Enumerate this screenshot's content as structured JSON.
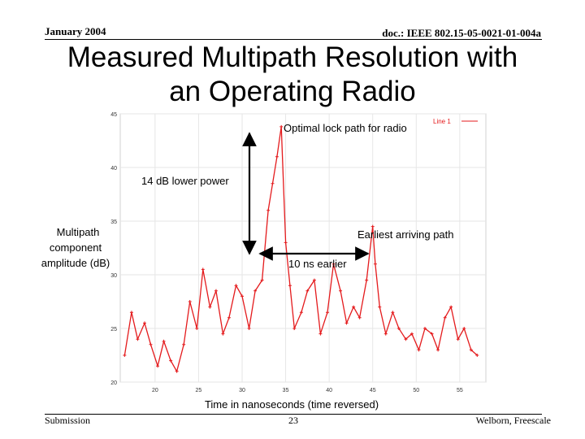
{
  "header": {
    "date": "January 2004",
    "doc": "doc.: IEEE 802.15-05-0021-01-004a"
  },
  "title_line1": "Measured Multipath Resolution with",
  "title_line2": "an Operating Radio",
  "footer": {
    "left": "Submission",
    "center": "23",
    "right": "Welborn, Freescale"
  },
  "colors": {
    "series": "#e41a1c",
    "arrow": "#000000"
  },
  "chart_data": {
    "type": "line",
    "title": "",
    "xlabel": "Time in nanoseconds (time reversed)",
    "ylabel_lines": [
      "Multipath",
      "component",
      "amplitude (dB)"
    ],
    "xlim": [
      16,
      58
    ],
    "ylim": [
      20,
      45
    ],
    "x_ticks": [
      20,
      25,
      30,
      35,
      40,
      45,
      50,
      55
    ],
    "y_ticks": [
      20,
      25,
      30,
      35,
      40,
      45
    ],
    "legend": {
      "label": "Line 1",
      "position": "top-right"
    },
    "series": [
      {
        "name": "Line 1",
        "x": [
          16.5,
          17.3,
          18.0,
          18.8,
          19.5,
          20.3,
          21.0,
          21.8,
          22.5,
          23.3,
          24.0,
          24.8,
          25.5,
          26.3,
          27.0,
          27.8,
          28.5,
          29.3,
          30.0,
          30.8,
          31.5,
          32.3,
          33.0,
          33.5,
          34.0,
          34.5,
          35.0,
          35.5,
          36.0,
          36.8,
          37.5,
          38.3,
          39.0,
          39.8,
          40.5,
          41.3,
          42.0,
          42.8,
          43.5,
          44.3,
          45.0,
          45.3,
          45.8,
          46.5,
          47.3,
          48.0,
          48.8,
          49.5,
          50.3,
          51.0,
          51.8,
          52.5,
          53.3,
          54.0,
          54.8,
          55.5,
          56.3,
          57.0
        ],
        "y": [
          22.5,
          26.5,
          24.0,
          25.5,
          23.5,
          21.5,
          23.8,
          22.0,
          21.0,
          23.5,
          27.5,
          25.0,
          30.5,
          27.0,
          28.5,
          24.5,
          26.0,
          29.0,
          28.0,
          25.0,
          28.5,
          29.5,
          36.0,
          38.5,
          41.0,
          43.8,
          33.0,
          29.0,
          25.0,
          26.5,
          28.5,
          29.5,
          24.5,
          26.5,
          31.0,
          28.5,
          25.5,
          27.0,
          26.0,
          29.5,
          34.5,
          31.0,
          27.0,
          24.5,
          26.5,
          25.0,
          24.0,
          24.5,
          23.0,
          25.0,
          24.5,
          23.0,
          26.0,
          27.0,
          24.0,
          25.0,
          23.0,
          22.5
        ]
      }
    ]
  },
  "annotations": {
    "optimal": "Optimal lock path for radio",
    "lower_power": "14 dB lower power",
    "earliest": "Earliest arriving path",
    "earlier": "10 ns earlier"
  }
}
